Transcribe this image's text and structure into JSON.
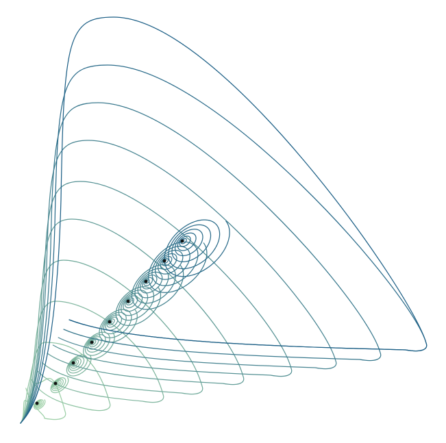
{
  "diagram": {
    "kind": "phase-portrait",
    "background_color": "#ffffff",
    "point_color": "#111111",
    "colors": {
      "inner": "#9ccfa6",
      "outer": "#1c5f86"
    },
    "trajectory_count": 10
  }
}
